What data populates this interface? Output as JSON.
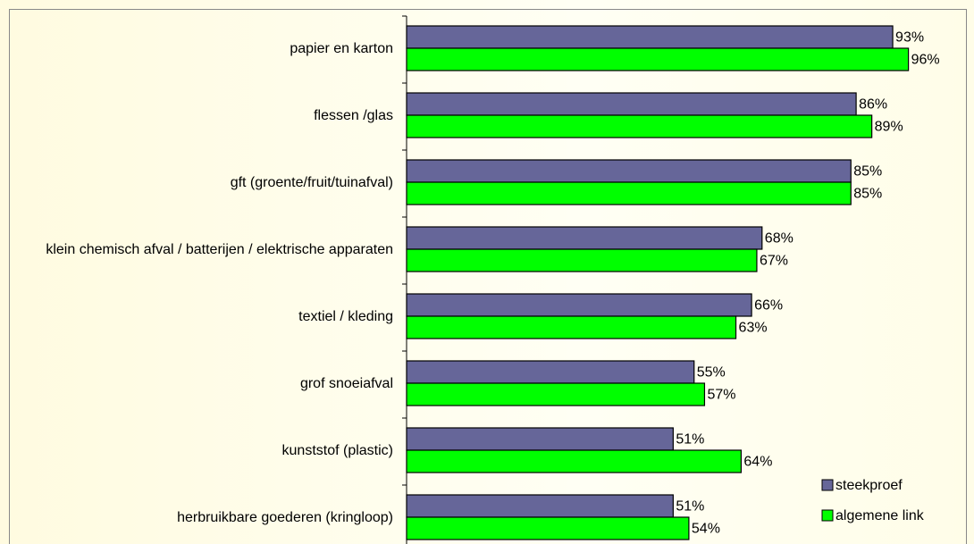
{
  "chart_data": {
    "type": "bar",
    "orientation": "horizontal",
    "categories": [
      "papier en karton",
      "flessen /glas",
      "gft (groente/fruit/tuinafval)",
      "klein chemisch afval / batterijen / elektrische apparaten",
      "textiel / kleding",
      "grof snoeiafval",
      "kunststof  (plastic)",
      "herbruikbare goederen (kringloop)"
    ],
    "series": [
      {
        "name": "steekproef",
        "color": "#666699",
        "values": [
          93,
          86,
          85,
          68,
          66,
          55,
          51,
          51
        ],
        "value_labels": [
          "93%",
          "86%",
          "85%",
          "68%",
          "66%",
          "55%",
          "51%",
          "51%"
        ]
      },
      {
        "name": "algemene link",
        "color": "#00ff00",
        "values": [
          96,
          89,
          85,
          67,
          63,
          57,
          64,
          54
        ],
        "value_labels": [
          "96%",
          "89%",
          "85%",
          "67%",
          "63%",
          "57%",
          "64%",
          "54%"
        ]
      }
    ],
    "legend": "bottom-right"
  }
}
